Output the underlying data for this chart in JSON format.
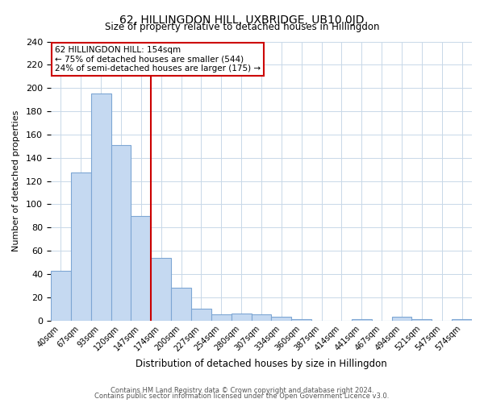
{
  "title": "62, HILLINGDON HILL, UXBRIDGE, UB10 0JD",
  "subtitle": "Size of property relative to detached houses in Hillingdon",
  "xlabel": "Distribution of detached houses by size in Hillingdon",
  "ylabel": "Number of detached properties",
  "bar_labels": [
    "40sqm",
    "67sqm",
    "93sqm",
    "120sqm",
    "147sqm",
    "174sqm",
    "200sqm",
    "227sqm",
    "254sqm",
    "280sqm",
    "307sqm",
    "334sqm",
    "360sqm",
    "387sqm",
    "414sqm",
    "441sqm",
    "467sqm",
    "494sqm",
    "521sqm",
    "547sqm",
    "574sqm"
  ],
  "bar_values": [
    43,
    127,
    195,
    151,
    90,
    54,
    28,
    10,
    5,
    6,
    5,
    3,
    1,
    0,
    0,
    1,
    0,
    3,
    1,
    0,
    1
  ],
  "bar_color": "#c5d9f1",
  "bar_edge_color": "#7da6d4",
  "vline_x": 4.5,
  "vline_color": "#cc0000",
  "ylim": [
    0,
    240
  ],
  "yticks": [
    0,
    20,
    40,
    60,
    80,
    100,
    120,
    140,
    160,
    180,
    200,
    220,
    240
  ],
  "annotation_title": "62 HILLINGDON HILL: 154sqm",
  "annotation_line1": "← 75% of detached houses are smaller (544)",
  "annotation_line2": "24% of semi-detached houses are larger (175) →",
  "annotation_box_color": "#ffffff",
  "annotation_box_edge": "#cc0000",
  "footnote1": "Contains HM Land Registry data © Crown copyright and database right 2024.",
  "footnote2": "Contains public sector information licensed under the Open Government Licence v3.0.",
  "background_color": "#ffffff",
  "grid_color": "#c8d8e8"
}
